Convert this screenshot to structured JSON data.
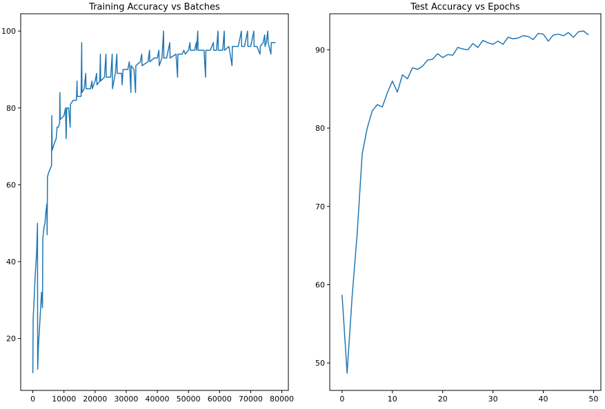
{
  "chart_data": [
    {
      "type": "line",
      "title": "Training Accuracy vs Batches",
      "x": [
        0,
        100,
        400,
        800,
        1200,
        1500,
        1550,
        1800,
        2300,
        2800,
        3100,
        3200,
        3600,
        3900,
        4200,
        4500,
        4600,
        4700,
        5000,
        5500,
        6000,
        6100,
        6200,
        7000,
        7500,
        7800,
        8200,
        8600,
        8700,
        8800,
        10000,
        10500,
        10700,
        10900,
        11500,
        12000,
        12100,
        13000,
        14000,
        14200,
        14300,
        15500,
        15700,
        15800,
        16500,
        17000,
        17100,
        18500,
        19000,
        19100,
        20000,
        20500,
        20600,
        21500,
        21700,
        21800,
        23000,
        23500,
        23600,
        25000,
        25500,
        25600,
        26500,
        27000,
        27100,
        28500,
        28700,
        29000,
        30500,
        31000,
        31100,
        31500,
        31600,
        32500,
        33000,
        33100,
        34500,
        35000,
        35100,
        37000,
        37500,
        37600,
        39000,
        40000,
        40500,
        40600,
        41500,
        42000,
        42100,
        43000,
        44000,
        44100,
        46000,
        46500,
        46600,
        48000,
        48500,
        49000,
        50000,
        50500,
        50600,
        52000,
        52500,
        52600,
        53000,
        53100,
        55000,
        55500,
        55600,
        57000,
        58000,
        58100,
        59000,
        59500,
        59600,
        61000,
        61500,
        61600,
        63000,
        64000,
        64100,
        65000,
        66000,
        67000,
        67100,
        68000,
        69000,
        69100,
        70000,
        71000,
        71100,
        72000,
        73000,
        73100,
        74000,
        74500,
        74600,
        75000,
        75500,
        75600,
        76500,
        76600,
        77000,
        78000
      ],
      "series": [
        {
          "name": "Training Accuracy",
          "color": "#1f77b4",
          "values": [
            11,
            25,
            30,
            37,
            42,
            50,
            12,
            18,
            25,
            32,
            28,
            46,
            49,
            50,
            53,
            55,
            47,
            62,
            63,
            64,
            65,
            78,
            69,
            71,
            72,
            75,
            75,
            76,
            84,
            77,
            78,
            80,
            72,
            80,
            80,
            75,
            81,
            82,
            82,
            87,
            83,
            83,
            97,
            84,
            85,
            89,
            85,
            85,
            87,
            85,
            87,
            89,
            86,
            87,
            94,
            87,
            88,
            94,
            88,
            88,
            94,
            85,
            89,
            94,
            89,
            89,
            86,
            90,
            90,
            92,
            91,
            84,
            91,
            90,
            84,
            91,
            92,
            94,
            91,
            92,
            95,
            92,
            93,
            93,
            95,
            91,
            93,
            100,
            93,
            93,
            97,
            93,
            94,
            88,
            94,
            94,
            95,
            94,
            95,
            97,
            95,
            95,
            97,
            95,
            100,
            95,
            95,
            88,
            95,
            95,
            97,
            95,
            95,
            100,
            95,
            95,
            100,
            95,
            96,
            91,
            96,
            96,
            96,
            100,
            96,
            96,
            100,
            96,
            96,
            100,
            96,
            96,
            94,
            96,
            97,
            99,
            96,
            97,
            100,
            97,
            94,
            97,
            97,
            97
          ]
        }
      ],
      "xlim": [
        -3900,
        82100
      ],
      "ylim": [
        6.5,
        104.5
      ],
      "xticks": [
        0,
        10000,
        20000,
        30000,
        40000,
        50000,
        60000,
        70000,
        80000
      ],
      "yticks": [
        20,
        40,
        60,
        80,
        100
      ]
    },
    {
      "type": "line",
      "title": "Test Accuracy vs Epochs",
      "x": [
        0,
        1,
        2,
        3,
        4,
        5,
        6,
        7,
        8,
        9,
        10,
        11,
        12,
        13,
        14,
        15,
        16,
        17,
        18,
        19,
        20,
        21,
        22,
        23,
        24,
        25,
        26,
        27,
        28,
        29,
        30,
        31,
        32,
        33,
        34,
        35,
        36,
        37,
        38,
        39,
        40,
        41,
        42,
        43,
        44,
        45,
        46,
        47,
        48,
        49
      ],
      "series": [
        {
          "name": "Test Accuracy",
          "color": "#1f77b4",
          "values": [
            58.7,
            48.7,
            58.5,
            66.5,
            76.7,
            80,
            82.2,
            83,
            82.7,
            84.5,
            86,
            84.6,
            86.8,
            86.3,
            87.7,
            87.5,
            87.9,
            88.7,
            88.8,
            89.5,
            89,
            89.4,
            89.3,
            90.3,
            90.1,
            90,
            90.8,
            90.3,
            91.2,
            90.9,
            90.7,
            91.1,
            90.7,
            91.6,
            91.4,
            91.5,
            91.8,
            91.7,
            91.3,
            92.1,
            92,
            91.1,
            91.9,
            92,
            91.8,
            92.2,
            91.6,
            92.3,
            92.4,
            91.9
          ]
        }
      ],
      "xlim": [
        -2.45,
        51.45
      ],
      "ylim": [
        46.5,
        94.6
      ],
      "xticks": [
        0,
        10,
        20,
        30,
        40,
        50
      ],
      "yticks": [
        50,
        60,
        70,
        80,
        90
      ]
    }
  ]
}
